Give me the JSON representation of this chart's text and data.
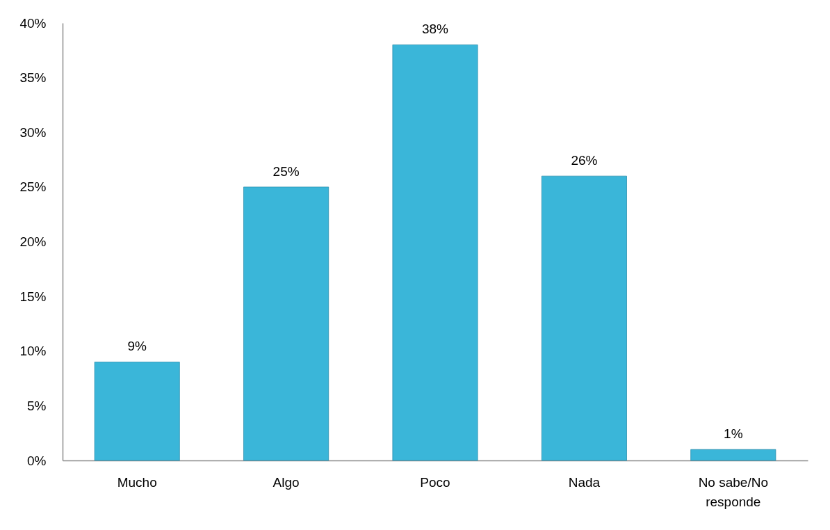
{
  "chart_data": {
    "type": "bar",
    "categories": [
      "Mucho",
      "Algo",
      "Poco",
      "Nada",
      "No sabe/No responde"
    ],
    "values": [
      9,
      25,
      38,
      26,
      1
    ],
    "color": "#3ab6d9",
    "value_labels": [
      "9%",
      "25%",
      "38%",
      "26%",
      "1%"
    ],
    "ylim": [
      0,
      40
    ],
    "yticks": [
      {
        "value": 0,
        "label": "0%"
      },
      {
        "value": 5,
        "label": "5%"
      },
      {
        "value": 10,
        "label": "10%"
      },
      {
        "value": 15,
        "label": "15%"
      },
      {
        "value": 20,
        "label": "20%"
      },
      {
        "value": 25,
        "label": "25%"
      },
      {
        "value": 30,
        "label": "30%"
      },
      {
        "value": 35,
        "label": "35%"
      },
      {
        "value": 40,
        "label": "40%"
      }
    ]
  }
}
